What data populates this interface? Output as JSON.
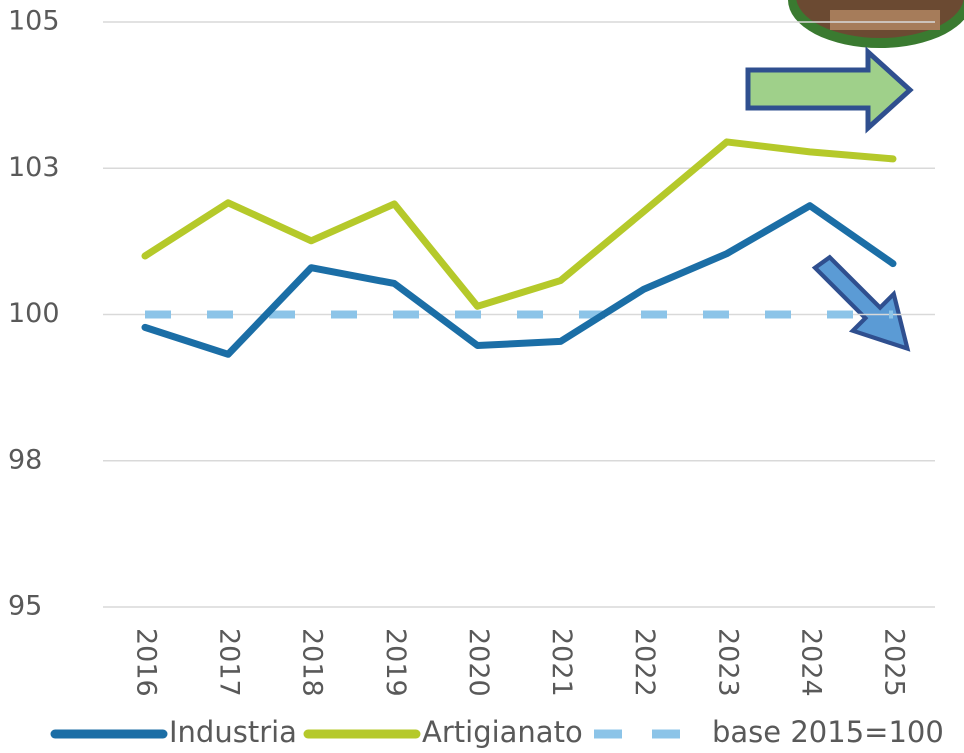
{
  "chart_data": {
    "type": "line",
    "categories": [
      "2016",
      "2017",
      "2018",
      "2019",
      "2020",
      "2021",
      "2022",
      "2023",
      "2024",
      "2025"
    ],
    "series": [
      {
        "name": "Industria",
        "color": "#1b6ea6",
        "values": [
          99.78,
          99.32,
          100.8,
          100.53,
          99.47,
          99.54,
          100.43,
          101.04,
          101.86,
          100.87
        ]
      },
      {
        "name": "Artigianato",
        "color": "#b5c92a",
        "values": [
          101.0,
          101.91,
          101.26,
          101.89,
          100.14,
          100.58,
          101.76,
          102.95,
          102.78,
          102.66
        ]
      },
      {
        "name": "base 2015=100",
        "color": "#8cc4e8",
        "line_style": "dashed",
        "values": [
          100,
          100,
          100,
          100,
          100,
          100,
          100,
          100,
          100,
          100
        ]
      }
    ],
    "ylim": [
      95,
      105
    ],
    "yticks": [
      95,
      {
        "value": 97.5,
        "label": "98"
      },
      100,
      {
        "value": 102.5,
        "label": "103"
      },
      105
    ],
    "grid": true,
    "legend": "bottom"
  }
}
